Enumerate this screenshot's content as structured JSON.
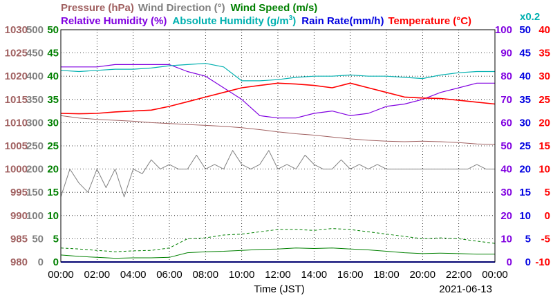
{
  "chart_data": {
    "type": "line",
    "date": "2021-06-13",
    "xlabel": "Time (JST)",
    "x_ticks": [
      "00:00",
      "02:00",
      "04:00",
      "06:00",
      "08:00",
      "10:00",
      "12:00",
      "14:00",
      "16:00",
      "18:00",
      "20:00",
      "22:00",
      "00:00"
    ],
    "legend": {
      "pressure": {
        "name": "Pressure (hPa)",
        "color": "#a06060"
      },
      "wind_direction": {
        "name": "Wind Direction",
        "unit": "(°)",
        "color": "#808080"
      },
      "wind_speed": {
        "name": "Wind Speed (m/s)",
        "color": "#008000"
      },
      "relative_humidity": {
        "name": "Relative Humidity (%)",
        "color": "#8000e0"
      },
      "absolute_humidity": {
        "name": "Absolute Humidity (g/m",
        "sup": "3",
        "close": ")",
        "color": "#00b0b0"
      },
      "rain_rate": {
        "name": "Rain Rate(mm/h)",
        "color": "#0000e0"
      },
      "temperature": {
        "name": "Temperature",
        "unit": "(°C)",
        "color": "#ff0000"
      },
      "abs_scale_note": {
        "name": "x0.2",
        "color": "#00b0b0"
      }
    },
    "axes": {
      "pressure": {
        "ticks": [
          "980",
          "985",
          "990",
          "995",
          "1000",
          "1005",
          "1010",
          "1015",
          "1020",
          "1025",
          "1030"
        ],
        "color": "#a06060",
        "range": [
          980,
          1030
        ]
      },
      "wind_direction": {
        "ticks": [
          "0",
          "50",
          "100",
          "150",
          "200",
          "250",
          "300",
          "350",
          "400",
          "450",
          "500"
        ],
        "color": "#808080",
        "range": [
          0,
          500
        ]
      },
      "wind_speed": {
        "ticks": [
          "0",
          "5",
          "10",
          "15",
          "20",
          "25",
          "30",
          "35",
          "40",
          "45",
          "50"
        ],
        "color": "#008000",
        "range": [
          0,
          50
        ]
      },
      "relative_humidity": {
        "ticks": [
          "0",
          "10",
          "20",
          "30",
          "40",
          "50",
          "60",
          "70",
          "80",
          "90",
          "100"
        ],
        "color": "#8000e0",
        "range": [
          0,
          100
        ]
      },
      "rain_rate": {
        "ticks": [
          "0",
          "5",
          "10",
          "15",
          "20",
          "25",
          "30",
          "35",
          "40",
          "45",
          "50"
        ],
        "color": "#0000e0",
        "range": [
          0,
          50
        ]
      },
      "temperature": {
        "ticks": [
          "-10",
          "-5",
          "0",
          "5",
          "10",
          "15",
          "20",
          "25",
          "30",
          "35",
          "40"
        ],
        "color": "#ff0000",
        "range": [
          -10,
          40
        ]
      }
    },
    "series": [
      {
        "key": "pressure",
        "x": [
          0,
          1,
          2,
          3,
          4,
          5,
          6,
          7,
          8,
          9,
          10,
          11,
          12,
          13,
          14,
          15,
          16,
          17,
          18,
          19,
          20,
          21,
          22,
          23,
          24
        ],
        "y": [
          1011.5,
          1011.0,
          1010.7,
          1010.5,
          1010.3,
          1010.0,
          1009.8,
          1009.6,
          1009.4,
          1009.2,
          1008.9,
          1008.5,
          1008.0,
          1007.6,
          1007.3,
          1006.9,
          1006.5,
          1006.2,
          1006.0,
          1005.9,
          1006.0,
          1005.9,
          1005.7,
          1005.4,
          1005.3
        ]
      },
      {
        "key": "wind_direction",
        "x": [
          0,
          0.5,
          1,
          1.5,
          2,
          2.5,
          3,
          3.5,
          4,
          4.5,
          5,
          5.5,
          6,
          6.5,
          7,
          7.5,
          8,
          8.5,
          9,
          9.5,
          10,
          10.5,
          11,
          11.5,
          12,
          12.5,
          13,
          13.5,
          14,
          14.5,
          15,
          15.5,
          16,
          16.5,
          17,
          17.5,
          18,
          18.5,
          19,
          19.5,
          20,
          20.5,
          21,
          21.5,
          22,
          22.5,
          23,
          23.5,
          24
        ],
        "y": [
          140,
          200,
          170,
          150,
          200,
          160,
          200,
          140,
          200,
          190,
          220,
          200,
          210,
          200,
          200,
          230,
          200,
          210,
          200,
          240,
          210,
          200,
          210,
          240,
          200,
          210,
          200,
          230,
          210,
          200,
          200,
          220,
          200,
          210,
          200,
          210,
          200,
          200,
          200,
          200,
          200,
          200,
          200,
          200,
          200,
          200,
          210,
          200,
          200
        ]
      },
      {
        "key": "wind_speed_avg",
        "x": [
          0,
          1,
          2,
          3,
          4,
          5,
          6,
          7,
          8,
          9,
          10,
          11,
          12,
          13,
          14,
          15,
          16,
          17,
          18,
          19,
          20,
          21,
          22,
          23,
          24
        ],
        "y": [
          1.5,
          1.2,
          1.0,
          0.8,
          0.9,
          0.9,
          1.0,
          2.0,
          2.2,
          2.3,
          2.5,
          2.7,
          2.8,
          3.0,
          2.9,
          3.0,
          2.8,
          2.6,
          2.3,
          2.0,
          1.8,
          1.9,
          1.8,
          1.7,
          1.7
        ]
      },
      {
        "key": "wind_speed_gust",
        "x": [
          0,
          1,
          2,
          3,
          4,
          5,
          6,
          7,
          8,
          9,
          10,
          11,
          12,
          13,
          14,
          15,
          16,
          17,
          18,
          19,
          20,
          21,
          22,
          23,
          24
        ],
        "y": [
          3.0,
          2.8,
          2.5,
          2.2,
          2.4,
          2.5,
          3.0,
          5.0,
          5.2,
          5.8,
          6.0,
          6.5,
          7.0,
          7.0,
          6.8,
          7.2,
          7.0,
          6.5,
          6.0,
          5.5,
          5.0,
          5.2,
          5.0,
          4.5,
          4.0
        ]
      },
      {
        "key": "relative_humidity",
        "x": [
          0,
          1,
          2,
          3,
          4,
          5,
          6,
          7,
          8,
          9,
          10,
          11,
          12,
          13,
          14,
          15,
          16,
          17,
          18,
          19,
          20,
          21,
          22,
          23,
          24
        ],
        "y": [
          84,
          84,
          84,
          85,
          85,
          85,
          85,
          82,
          80,
          75,
          70,
          63,
          62,
          62,
          64,
          65,
          63,
          64,
          67,
          68,
          70,
          73,
          75,
          77,
          77
        ]
      },
      {
        "key": "absolute_humidity",
        "x": [
          0,
          1,
          2,
          3,
          4,
          5,
          6,
          7,
          8,
          9,
          10,
          11,
          12,
          13,
          14,
          15,
          16,
          17,
          18,
          19,
          20,
          21,
          22,
          23,
          24
        ],
        "y": [
          82.5,
          82.0,
          82.5,
          83.0,
          83.0,
          83.5,
          84.5,
          85.0,
          85.5,
          84.0,
          78.0,
          78.0,
          78.5,
          79.5,
          80.0,
          80.0,
          80.5,
          80.0,
          80.0,
          79.5,
          79.0,
          80.5,
          81.5,
          82.0,
          82.0
        ]
      },
      {
        "key": "rain_rate",
        "x": [
          0,
          24
        ],
        "y": [
          0,
          0
        ]
      },
      {
        "key": "temperature",
        "x": [
          0,
          1,
          2,
          3,
          4,
          5,
          6,
          7,
          8,
          9,
          10,
          11,
          12,
          13,
          14,
          15,
          16,
          17,
          18,
          19,
          20,
          21,
          22,
          23,
          24
        ],
        "y": [
          22.0,
          21.9,
          22.0,
          22.3,
          22.5,
          22.7,
          23.5,
          24.5,
          25.5,
          26.5,
          27.5,
          28.0,
          28.5,
          28.3,
          28.0,
          27.5,
          28.5,
          27.5,
          26.5,
          25.5,
          25.3,
          25.2,
          24.8,
          24.4,
          24.0
        ]
      }
    ]
  }
}
